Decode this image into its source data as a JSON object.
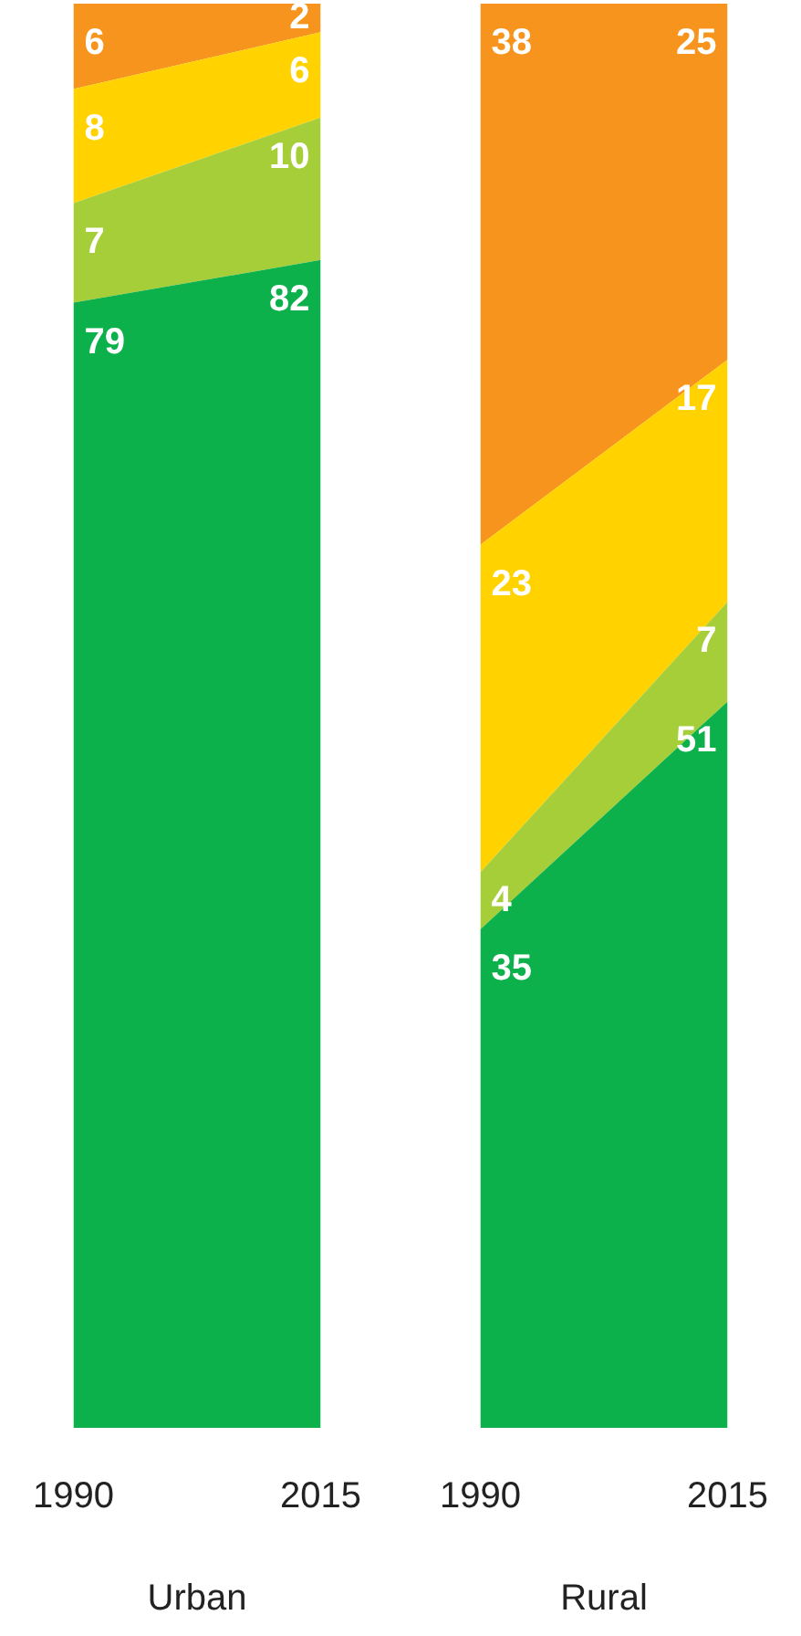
{
  "chart_data": [
    {
      "type": "area",
      "stacked": true,
      "xlabel": "Urban",
      "categories": [
        "1990",
        "2015"
      ],
      "tick_labels": "x",
      "grid": false,
      "legend": false,
      "series": [
        {
          "color": "#0db14b",
          "values": [
            79,
            82
          ],
          "value_labels": [
            "79",
            "82"
          ]
        },
        {
          "color": "#a6ce39",
          "values": [
            7,
            10
          ],
          "value_labels": [
            "7",
            "10"
          ]
        },
        {
          "color": "#ffd200",
          "values": [
            8,
            6
          ],
          "value_labels": [
            "8",
            "6"
          ]
        },
        {
          "color": "#f7941d",
          "values": [
            6,
            2
          ],
          "value_labels": [
            "6",
            "2"
          ]
        }
      ]
    },
    {
      "type": "area",
      "stacked": true,
      "xlabel": "Rural",
      "categories": [
        "1990",
        "2015"
      ],
      "tick_labels": "x",
      "grid": false,
      "legend": false,
      "series": [
        {
          "color": "#0db14b",
          "values": [
            35,
            51
          ],
          "value_labels": [
            "35",
            "51"
          ]
        },
        {
          "color": "#a6ce39",
          "values": [
            4,
            7
          ],
          "value_labels": [
            "4",
            "7"
          ]
        },
        {
          "color": "#ffd200",
          "values": [
            23,
            17
          ],
          "value_labels": [
            "23",
            "17"
          ]
        },
        {
          "color": "#f7941d",
          "values": [
            38,
            25
          ],
          "value_labels": [
            "38",
            "25"
          ]
        }
      ]
    }
  ]
}
